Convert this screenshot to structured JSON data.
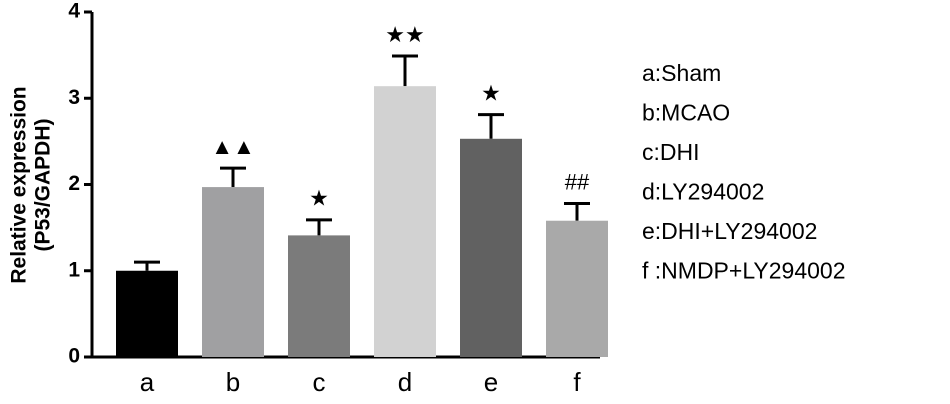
{
  "chart_data": {
    "type": "bar",
    "y_label": [
      "Relative expression",
      "(P53/GAPDH)"
    ],
    "categories": [
      "a",
      "b",
      "c",
      "d",
      "e",
      "f"
    ],
    "values": [
      1.0,
      1.97,
      1.41,
      3.14,
      2.53,
      1.58
    ],
    "errors": [
      0.1,
      0.22,
      0.18,
      0.35,
      0.28,
      0.2
    ],
    "annotations": [
      null,
      "▲▲",
      "★",
      "★★",
      "★",
      "##"
    ],
    "colors": [
      "#000000",
      "#a0a0a2",
      "#7b7b7b",
      "#d2d2d2",
      "#616161",
      "#a9a9a9"
    ],
    "legend": [
      "a:Sham",
      "b:MCAO",
      "c:DHI",
      "d:LY294002",
      "e:DHI+LY294002",
      "f :NMDP+LY294002"
    ],
    "ylim": [
      0,
      4
    ],
    "yticks": [
      0,
      1,
      2,
      3,
      4
    ]
  }
}
